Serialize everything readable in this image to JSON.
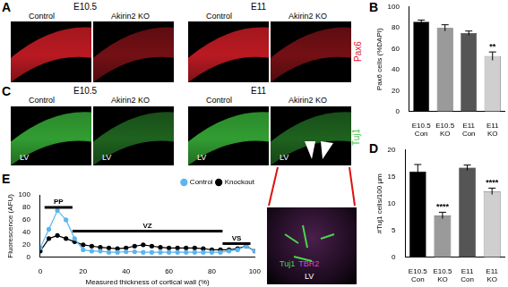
{
  "images": {
    "A": {
      "panel": "A",
      "stain": "Pax6",
      "color": "#e8202a",
      "groups": [
        {
          "stage": "E10.5",
          "conditions": [
            "Control",
            "Akirin2 KO"
          ]
        },
        {
          "stage": "E11",
          "conditions": [
            "Control",
            "Akirin2 KO"
          ]
        }
      ]
    },
    "C": {
      "panel": "C",
      "stain": "Tuj1",
      "color": "#3ec43e",
      "region": "LV",
      "groups": [
        {
          "stage": "E10.5",
          "conditions": [
            "Control",
            "Akirin2 KO"
          ]
        },
        {
          "stage": "E11",
          "conditions": [
            "Control",
            "Akirin2 KO"
          ]
        }
      ],
      "inset": {
        "markers": [
          {
            "name": "Tuj1",
            "color": "#4cd44c"
          },
          {
            "name": "TBR2",
            "color": "#c84fd0"
          }
        ],
        "region": "LV"
      }
    }
  },
  "chart_data": [
    {
      "panel": "B",
      "type": "bar",
      "categories": [
        "E10.5 Con",
        "E10.5 KO",
        "E11 Con",
        "E11 KO"
      ],
      "values": [
        86,
        80,
        75,
        53
      ],
      "errors": [
        1.5,
        3,
        2,
        4
      ],
      "colors": [
        "#000000",
        "#9a9a9a",
        "#555555",
        "#cfcfcf"
      ],
      "y_label": "Pax6 cells (%DAPI)",
      "ylim": [
        0,
        100
      ],
      "yticks": [
        0,
        20,
        40,
        60,
        80,
        100
      ],
      "grid": false,
      "annotations": [
        {
          "category": "E11 KO",
          "text": "**"
        }
      ]
    },
    {
      "panel": "D",
      "type": "bar",
      "categories": [
        "E10.5 Con",
        "E10.5 KO",
        "E11 Con",
        "E11 KO"
      ],
      "values": [
        16,
        7.8,
        16.7,
        12.3
      ],
      "errors": [
        1.3,
        0.6,
        0.5,
        0.6
      ],
      "colors": [
        "#000000",
        "#9a9a9a",
        "#555555",
        "#cfcfcf"
      ],
      "y_label": "#Tuj1 cells/100 µm",
      "ylim": [
        0,
        20
      ],
      "yticks": [
        0,
        5,
        10,
        15,
        20
      ],
      "grid": false,
      "annotations": [
        {
          "category": "E10.5 KO",
          "text": "****"
        },
        {
          "category": "E11 KO",
          "text": "****"
        }
      ]
    },
    {
      "panel": "E",
      "type": "line",
      "x": [
        0,
        4,
        8,
        12,
        16,
        20,
        24,
        28,
        32,
        36,
        40,
        44,
        48,
        52,
        56,
        60,
        64,
        68,
        72,
        76,
        80,
        84,
        88,
        92,
        96,
        100
      ],
      "series": [
        {
          "name": "Control",
          "color": "#5bb5f0",
          "marker": "circle",
          "values": [
            15,
            45,
            75,
            60,
            30,
            12,
            10,
            10,
            8,
            8,
            9,
            9,
            8,
            8,
            8,
            8,
            8,
            8,
            8,
            8,
            8,
            8,
            10,
            12,
            18,
            10
          ]
        },
        {
          "name": "Knockout",
          "color": "#000000",
          "marker": "circle",
          "values": [
            10,
            30,
            35,
            30,
            25,
            20,
            18,
            16,
            15,
            14,
            15,
            18,
            20,
            18,
            16,
            15,
            15,
            15,
            15,
            14,
            12,
            12,
            12,
            14,
            18,
            10
          ]
        }
      ],
      "x_label": "Measured thickness of cortical wall (%)",
      "y_label": "Fluorescence (AFU)",
      "xlim": [
        0,
        100
      ],
      "xticks": [
        0,
        20,
        40,
        60,
        80,
        100
      ],
      "ylim": [
        0,
        100
      ],
      "yticks": [
        0,
        20,
        40,
        60,
        80,
        100
      ],
      "legend": "upper right",
      "grid": false,
      "spans": [
        {
          "label": "PP",
          "x": [
            2,
            15
          ],
          "y": 80
        },
        {
          "label": "VZ",
          "x": [
            15,
            85
          ],
          "y": 42
        },
        {
          "label": "VS",
          "x": [
            85,
            98
          ],
          "y": 22
        }
      ]
    }
  ]
}
